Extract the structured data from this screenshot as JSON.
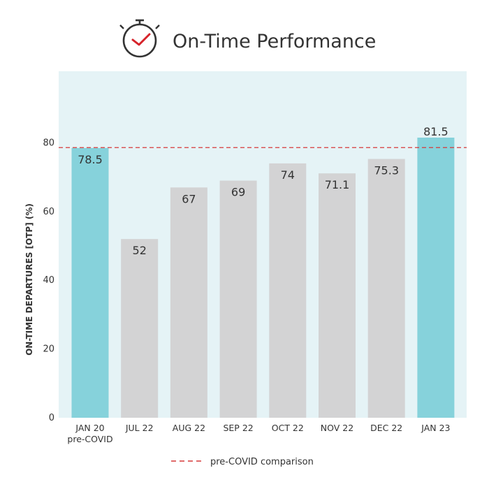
{
  "title": "On-Time Performance",
  "icon": "clock-check-icon",
  "colors": {
    "highlight_bar": "#86d2db",
    "normal_bar": "#d3d3d4",
    "plot_background": "#e5f3f6",
    "reference_line": "#d63a3a",
    "icon_red": "#d6232a",
    "text": "#333333"
  },
  "legend": {
    "label": "pre-COVID comparison",
    "position": "bottom-center"
  },
  "chart_data": {
    "type": "bar",
    "title": "On-Time Performance",
    "xlabel": "",
    "ylabel": "ON-TIME DEPARTURES [OTP] (%)",
    "ylim": [
      0,
      100
    ],
    "yticks": [
      0,
      20,
      40,
      60,
      80
    ],
    "grid": false,
    "categories": [
      [
        "JAN 20",
        "pre-COVID"
      ],
      [
        "JUL 22"
      ],
      [
        "AUG 22"
      ],
      [
        "SEP 22"
      ],
      [
        "OCT 22"
      ],
      [
        "NOV 22"
      ],
      [
        "DEC 22"
      ],
      [
        "JAN 23"
      ]
    ],
    "values": [
      78.5,
      52,
      67,
      69,
      74,
      71.1,
      75.3,
      81.5
    ],
    "value_labels": [
      "78.5",
      "52",
      "67",
      "69",
      "74",
      "71.1",
      "75.3",
      "81.5"
    ],
    "highlighted": [
      true,
      false,
      false,
      false,
      false,
      false,
      false,
      true
    ],
    "reference_line": {
      "value": 78.5,
      "style": "dashed",
      "label": "pre-COVID comparison"
    }
  }
}
